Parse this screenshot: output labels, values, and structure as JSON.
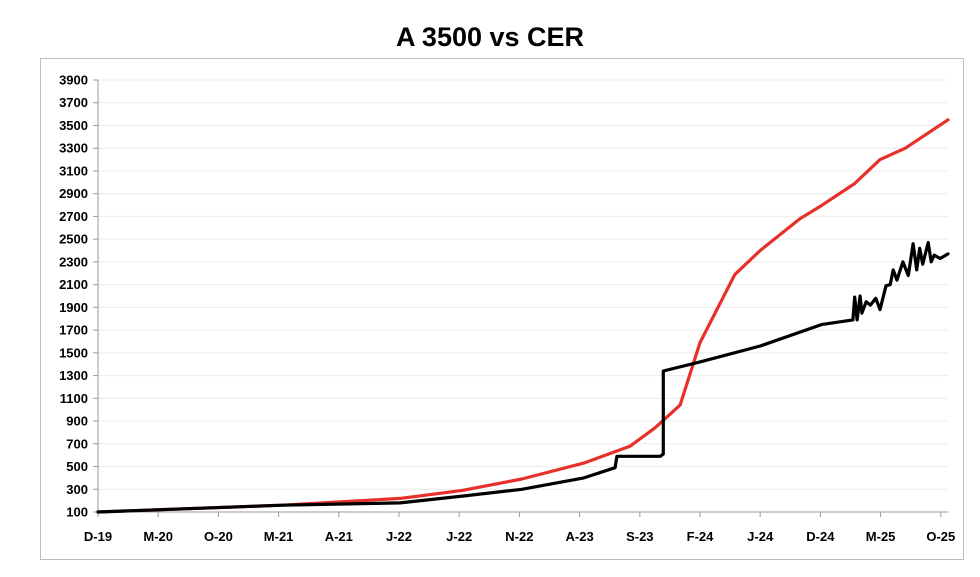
{
  "chart_data": {
    "type": "line",
    "title": "A 3500 vs CER",
    "xlabel": "",
    "ylabel": "",
    "categories": [
      "D-19",
      "M-20",
      "O-20",
      "M-21",
      "A-21",
      "J-22",
      "J-22",
      "N-22",
      "A-23",
      "S-23",
      "F-24",
      "J-24",
      "D-24",
      "M-25",
      "O-25"
    ],
    "yticks": [
      100,
      300,
      500,
      700,
      900,
      1100,
      1300,
      1500,
      1700,
      1900,
      2100,
      2300,
      2500,
      2700,
      2900,
      3100,
      3300,
      3500,
      3700,
      3900
    ],
    "ylim": [
      100,
      3900
    ],
    "grid": true,
    "series": [
      {
        "name": "CER",
        "color": "#e8302a",
        "points": [
          [
            0,
            100
          ],
          [
            3.06,
            160
          ],
          [
            5.02,
            220
          ],
          [
            6.05,
            290
          ],
          [
            7.04,
            390
          ],
          [
            8.07,
            530
          ],
          [
            8.84,
            680
          ],
          [
            9.25,
            840
          ],
          [
            9.67,
            1040
          ],
          [
            10,
            1590
          ],
          [
            10.58,
            2190
          ],
          [
            11,
            2400
          ],
          [
            11.66,
            2680
          ],
          [
            12.03,
            2800
          ],
          [
            12.57,
            2990
          ],
          [
            12.99,
            3200
          ],
          [
            13.41,
            3300
          ],
          [
            14.12,
            3550
          ]
        ]
      },
      {
        "name": "A 3500",
        "color": "#000000",
        "points": [
          [
            0,
            100
          ],
          [
            3.06,
            160
          ],
          [
            5.02,
            180
          ],
          [
            6.05,
            240
          ],
          [
            7.04,
            300
          ],
          [
            8.07,
            400
          ],
          [
            8.59,
            490
          ],
          [
            8.62,
            590
          ],
          [
            9.34,
            590
          ],
          [
            9.39,
            610
          ],
          [
            9.39,
            1340
          ],
          [
            10,
            1420
          ],
          [
            11,
            1560
          ],
          [
            12.03,
            1750
          ],
          [
            12.54,
            1790
          ],
          [
            12.57,
            1990
          ],
          [
            12.61,
            1790
          ],
          [
            12.66,
            2000
          ],
          [
            12.69,
            1850
          ],
          [
            12.76,
            1950
          ],
          [
            12.83,
            1920
          ],
          [
            12.92,
            1980
          ],
          [
            12.99,
            1880
          ],
          [
            13.09,
            2090
          ],
          [
            13.16,
            2100
          ],
          [
            13.21,
            2230
          ],
          [
            13.27,
            2140
          ],
          [
            13.37,
            2300
          ],
          [
            13.46,
            2180
          ],
          [
            13.54,
            2460
          ],
          [
            13.6,
            2230
          ],
          [
            13.65,
            2420
          ],
          [
            13.7,
            2280
          ],
          [
            13.79,
            2470
          ],
          [
            13.84,
            2300
          ],
          [
            13.89,
            2360
          ],
          [
            13.99,
            2330
          ],
          [
            14.12,
            2370
          ]
        ]
      }
    ]
  }
}
